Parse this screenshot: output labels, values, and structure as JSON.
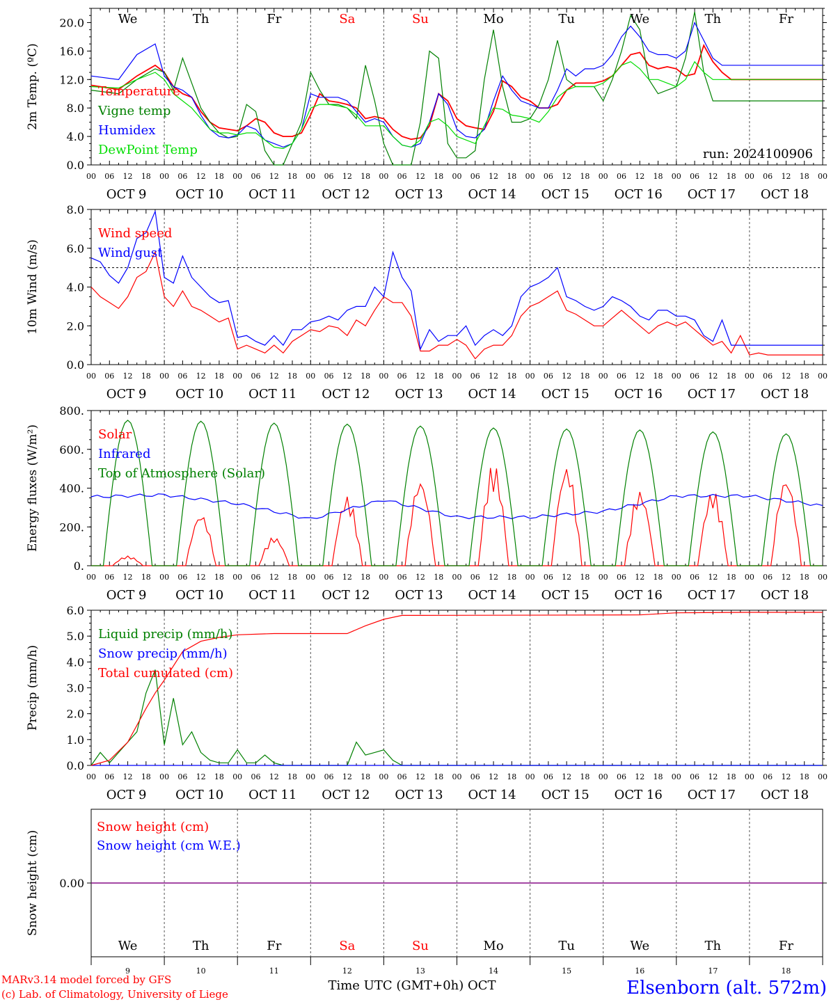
{
  "colors": {
    "red": "#ff0000",
    "green": "#008000",
    "blue": "#0000ff",
    "lime": "#00dd00",
    "purple": "#800080",
    "axis": "#000000",
    "grid": "#555555"
  },
  "days": [
    {
      "name": "We",
      "weekend": false,
      "date": "OCT  9",
      "num": "9"
    },
    {
      "name": "Th",
      "weekend": false,
      "date": "OCT 10",
      "num": "10"
    },
    {
      "name": "Fr",
      "weekend": false,
      "date": "OCT 11",
      "num": "11"
    },
    {
      "name": "Sa",
      "weekend": true,
      "date": "OCT 12",
      "num": "12"
    },
    {
      "name": "Su",
      "weekend": true,
      "date": "OCT 13",
      "num": "13"
    },
    {
      "name": "Mo",
      "weekend": false,
      "date": "OCT 14",
      "num": "14"
    },
    {
      "name": "Tu",
      "weekend": false,
      "date": "OCT 15",
      "num": "15"
    },
    {
      "name": "We",
      "weekend": false,
      "date": "OCT 16",
      "num": "16"
    },
    {
      "name": "Th",
      "weekend": false,
      "date": "OCT 17",
      "num": "17"
    },
    {
      "name": "Fr",
      "weekend": false,
      "date": "OCT 18",
      "num": "18"
    }
  ],
  "hour_ticks": [
    "00",
    "06",
    "12",
    "18"
  ],
  "hour_tick_end": "00",
  "footer": {
    "axis_title": "Time UTC (GMT+0h) OCT",
    "credit_line1": "MARv3.14 model forced by GFS",
    "credit_line2": "(c) Lab. of Climatology, University of Liege",
    "station": "Elsenborn (alt. 572m)"
  },
  "chart_data": [
    {
      "type": "line",
      "ylabel": "2m Temp. (ºC)",
      "ylim": [
        0,
        22
      ],
      "yticks": [
        "0.0",
        "4.0",
        "8.0",
        "12.0",
        "16.0",
        "20.0"
      ],
      "ytick_values": [
        0,
        4,
        8,
        12,
        16,
        20
      ],
      "annotation": "run: 2024100906",
      "x": [
        0,
        9,
        15,
        21,
        24,
        27,
        30,
        33,
        36,
        39,
        42,
        45,
        48,
        51,
        54,
        57,
        60,
        63,
        66,
        69,
        72,
        75,
        78,
        81,
        84,
        87,
        90,
        93,
        96,
        99,
        102,
        105,
        108,
        111,
        114,
        117,
        120,
        123,
        126,
        129,
        132,
        135,
        138,
        141,
        144,
        147,
        150,
        153,
        156,
        159,
        162,
        165,
        168,
        171,
        174,
        177,
        180,
        183,
        186,
        189,
        192,
        195,
        198,
        201,
        204,
        207,
        210,
        213,
        216,
        219,
        222,
        225,
        228,
        231,
        234,
        237,
        240
      ],
      "series": [
        {
          "name": "Temperature",
          "color": "red",
          "values": [
            11.2,
            10.6,
            12.5,
            14.0,
            13.0,
            11.0,
            10.0,
            9.5,
            7.5,
            6.0,
            5.2,
            5.0,
            4.8,
            5.5,
            6.5,
            6.0,
            4.5,
            4.0,
            4.0,
            4.5,
            7.0,
            10.0,
            9.0,
            8.8,
            8.5,
            8.0,
            6.5,
            6.8,
            6.5,
            5.0,
            4.0,
            3.6,
            3.8,
            5.5,
            10.0,
            9.0,
            6.5,
            5.5,
            5.2,
            5.0,
            7.5,
            11.8,
            11.0,
            9.5,
            9.0,
            8.0,
            8.0,
            8.5,
            10.5,
            11.5,
            11.5,
            11.5,
            11.8,
            12.5,
            14.0,
            15.5,
            15.8,
            14.0,
            13.5,
            13.8,
            13.5,
            12.5,
            12.8,
            16.8,
            14.5,
            13.0,
            12.0,
            12.0,
            12.0,
            12.0,
            12.0,
            12.0,
            12.0,
            12.0,
            12.0,
            12.0,
            12.0
          ]
        },
        {
          "name": "Vigne temp",
          "color": "green",
          "values": [
            10.5,
            10.0,
            12.0,
            13.5,
            13.0,
            10.5,
            15.0,
            11.5,
            8.0,
            6.0,
            4.5,
            3.8,
            4.0,
            8.5,
            7.5,
            2.0,
            0.0,
            0.0,
            3.0,
            6.0,
            13.0,
            10.5,
            8.5,
            8.5,
            8.0,
            6.5,
            14.0,
            9.0,
            3.0,
            0.0,
            0.0,
            0.0,
            6.0,
            16.0,
            15.0,
            3.0,
            1.0,
            1.0,
            2.0,
            12.0,
            19.0,
            11.0,
            6.0,
            6.0,
            6.5,
            8.5,
            12.0,
            17.5,
            12.0,
            11.0,
            11.0,
            11.0,
            9.0,
            12.0,
            16.0,
            21.0,
            19.0,
            12.0,
            10.0,
            10.5,
            11.0,
            15.0,
            21.5,
            13.0,
            9.0,
            9.0,
            9.0,
            9.0,
            9.0,
            9.0,
            9.0,
            9.0,
            9.0,
            9.0,
            9.0,
            9.0,
            9.0
          ]
        },
        {
          "name": "Humidex",
          "color": "blue",
          "values": [
            12.5,
            12.0,
            15.5,
            17.0,
            12.5,
            11.0,
            10.5,
            9.5,
            7.0,
            5.0,
            4.0,
            3.8,
            4.2,
            5.5,
            5.0,
            3.5,
            3.0,
            2.5,
            3.0,
            5.0,
            10.0,
            9.5,
            9.5,
            9.5,
            9.0,
            7.5,
            6.0,
            6.5,
            6.0,
            4.0,
            2.8,
            2.5,
            3.0,
            6.0,
            10.0,
            8.5,
            5.0,
            4.0,
            3.8,
            5.0,
            9.0,
            12.5,
            10.5,
            9.0,
            8.5,
            8.0,
            8.0,
            10.5,
            13.5,
            12.5,
            13.5,
            13.5,
            14.0,
            15.5,
            18.0,
            19.5,
            18.0,
            16.0,
            15.5,
            15.5,
            15.0,
            16.0,
            20.0,
            17.5,
            15.0,
            14.0,
            14.0,
            14.0,
            14.0,
            14.0,
            14.0,
            14.0,
            14.0,
            14.0,
            14.0,
            14.0,
            14.0
          ]
        },
        {
          "name": "DewPoint Temp",
          "color": "lime",
          "values": [
            11.0,
            10.8,
            12.0,
            13.0,
            12.0,
            10.0,
            9.0,
            8.0,
            6.5,
            5.0,
            4.5,
            4.5,
            4.2,
            4.5,
            4.5,
            3.5,
            2.5,
            2.3,
            3.0,
            5.0,
            8.0,
            8.5,
            8.5,
            8.3,
            8.0,
            7.0,
            5.5,
            5.5,
            5.5,
            4.0,
            2.8,
            2.5,
            3.5,
            6.0,
            6.5,
            5.5,
            4.0,
            3.5,
            3.0,
            5.5,
            8.0,
            7.8,
            7.0,
            6.8,
            6.5,
            6.0,
            7.5,
            9.5,
            10.5,
            11.0,
            11.0,
            11.0,
            11.5,
            12.5,
            14.0,
            14.5,
            13.5,
            12.0,
            12.0,
            11.5,
            11.0,
            12.0,
            14.5,
            13.0,
            12.0,
            12.0,
            12.0,
            12.0,
            12.0,
            12.0,
            12.0,
            12.0,
            12.0,
            12.0,
            12.0,
            12.0,
            12.0
          ]
        }
      ]
    },
    {
      "type": "line",
      "ylabel": "10m Wind (m/s)",
      "ylim": [
        0,
        8
      ],
      "yticks": [
        "0.0",
        "2.0",
        "4.0",
        "6.0",
        "8.0"
      ],
      "ytick_values": [
        0,
        2,
        4,
        6,
        8
      ],
      "ref_line": 5,
      "x": [
        0,
        3,
        6,
        9,
        12,
        15,
        18,
        21,
        24,
        27,
        30,
        33,
        36,
        39,
        42,
        45,
        48,
        51,
        54,
        57,
        60,
        63,
        66,
        69,
        72,
        75,
        78,
        81,
        84,
        87,
        90,
        93,
        96,
        99,
        102,
        105,
        108,
        111,
        114,
        117,
        120,
        123,
        126,
        129,
        132,
        135,
        138,
        141,
        144,
        147,
        150,
        153,
        156,
        159,
        162,
        165,
        168,
        171,
        174,
        177,
        180,
        183,
        186,
        189,
        192,
        195,
        198,
        201,
        204,
        207,
        210,
        213,
        216,
        219,
        222,
        225,
        228,
        231,
        234,
        237,
        240
      ],
      "series": [
        {
          "name": "Wind speed",
          "color": "red",
          "values": [
            4.0,
            3.5,
            3.2,
            2.9,
            3.5,
            4.5,
            4.8,
            5.8,
            3.5,
            3.0,
            3.8,
            3.0,
            2.8,
            2.5,
            2.2,
            2.4,
            0.8,
            1.0,
            0.8,
            0.6,
            1.0,
            0.6,
            1.2,
            1.5,
            1.8,
            1.7,
            2.0,
            1.9,
            1.5,
            2.3,
            2.0,
            2.8,
            3.5,
            3.2,
            3.2,
            2.5,
            0.7,
            0.7,
            1.0,
            1.0,
            1.3,
            1.0,
            0.3,
            0.8,
            1.0,
            1.0,
            1.5,
            2.5,
            3.0,
            3.2,
            3.5,
            3.8,
            2.8,
            2.6,
            2.3,
            2.0,
            2.0,
            2.4,
            2.8,
            2.4,
            2.0,
            1.6,
            2.0,
            2.2,
            2.0,
            2.2,
            1.8,
            1.4,
            1.0,
            1.2,
            0.6,
            1.5,
            0.5,
            0.6,
            0.5,
            0.5,
            0.5,
            0.5,
            0.5,
            0.5,
            0.5
          ]
        },
        {
          "name": "Wind gust",
          "color": "blue",
          "values": [
            5.5,
            5.3,
            4.6,
            4.2,
            5.0,
            6.5,
            6.8,
            7.9,
            4.5,
            4.2,
            5.6,
            4.5,
            4.0,
            3.5,
            3.2,
            3.3,
            1.4,
            1.5,
            1.2,
            1.0,
            1.5,
            1.0,
            1.8,
            1.8,
            2.2,
            2.3,
            2.5,
            2.3,
            2.8,
            3.0,
            3.0,
            4.0,
            3.5,
            5.8,
            4.5,
            3.8,
            0.8,
            1.8,
            1.2,
            1.5,
            1.5,
            2.0,
            1.0,
            1.5,
            1.8,
            1.5,
            2.0,
            3.5,
            4.0,
            4.2,
            4.5,
            5.0,
            3.5,
            3.3,
            3.0,
            2.8,
            3.0,
            3.5,
            3.3,
            3.0,
            2.5,
            2.3,
            2.8,
            2.8,
            2.5,
            2.5,
            2.3,
            1.5,
            1.2,
            2.3,
            1.0,
            1.0,
            1.0,
            1.0,
            1.0,
            1.0,
            1.0,
            1.0,
            1.0,
            1.0,
            1.0
          ]
        }
      ]
    },
    {
      "type": "line",
      "ylabel": "Energy fluxes (W/m²)",
      "ylim": [
        0,
        800
      ],
      "yticks": [
        "0.",
        "200.",
        "400.",
        "600.",
        "800."
      ],
      "ytick_values": [
        0,
        200,
        400,
        600,
        800
      ],
      "series": [
        {
          "name": "Solar",
          "color": "red",
          "daily_peaks": [
            50,
            270,
            150,
            360,
            450,
            530,
            520,
            390,
            390,
            460
          ]
        },
        {
          "name": "Infrared",
          "color": "blue",
          "x": [
            0,
            24,
            48,
            72,
            96,
            120,
            144,
            168,
            192,
            216,
            240
          ],
          "values": [
            355,
            365,
            320,
            240,
            340,
            250,
            250,
            280,
            360,
            360,
            310
          ]
        },
        {
          "name": "Top of Atmosphere (Solar)",
          "color": "green",
          "daily_peaks": [
            750,
            745,
            735,
            730,
            720,
            710,
            705,
            700,
            690,
            680
          ]
        }
      ]
    },
    {
      "type": "line",
      "ylabel": "Precip (mm/h)",
      "ylim": [
        0,
        6
      ],
      "yticks": [
        "0.0",
        "1.0",
        "2.0",
        "3.0",
        "4.0",
        "5.0",
        "6.0"
      ],
      "ytick_values": [
        0,
        1,
        2,
        3,
        4,
        5,
        6
      ],
      "series": [
        {
          "name": "Liquid precip (mm/h)",
          "color": "green",
          "x": [
            0,
            3,
            6,
            9,
            12,
            15,
            18,
            21,
            24,
            27,
            30,
            33,
            36,
            39,
            42,
            45,
            48,
            51,
            54,
            57,
            60,
            63,
            66,
            69,
            72,
            75,
            78,
            81,
            84,
            87,
            90,
            93,
            96,
            99,
            102,
            105,
            240
          ],
          "values": [
            0.0,
            0.5,
            0.1,
            0.5,
            0.9,
            1.3,
            2.8,
            3.7,
            0.8,
            2.6,
            0.8,
            1.3,
            0.5,
            0.2,
            0.1,
            0.1,
            0.6,
            0.1,
            0.1,
            0.4,
            0.1,
            0.0,
            0.0,
            0.0,
            0.0,
            0.0,
            0.0,
            0.0,
            0.0,
            0.9,
            0.4,
            0.5,
            0.6,
            0.2,
            0.0,
            0.0,
            0.0
          ]
        },
        {
          "name": "Snow precip (mm/h)",
          "color": "blue",
          "x": [
            0,
            240
          ],
          "values": [
            0.0,
            0.0
          ]
        },
        {
          "name": "Total cumulated (cm)",
          "color": "red",
          "x": [
            0,
            6,
            12,
            18,
            21,
            24,
            30,
            36,
            42,
            48,
            60,
            72,
            84,
            90,
            96,
            102,
            108,
            180,
            192,
            216,
            240
          ],
          "values": [
            0.0,
            0.2,
            0.9,
            2.2,
            2.8,
            3.3,
            4.4,
            4.8,
            4.95,
            5.05,
            5.1,
            5.1,
            5.1,
            5.4,
            5.65,
            5.8,
            5.8,
            5.82,
            5.9,
            5.92,
            5.92
          ]
        }
      ]
    },
    {
      "type": "line",
      "ylabel": "Snow height (cm)",
      "ylim": [
        -1,
        1
      ],
      "yticks": [
        "0.00"
      ],
      "ytick_values": [
        0
      ],
      "series": [
        {
          "name": "Snow height (cm)",
          "color": "red",
          "x": [
            0,
            240
          ],
          "values": [
            0,
            0
          ]
        },
        {
          "name": "Snow height (cm W.E.)",
          "color": "blue",
          "x": [
            0,
            240
          ],
          "values": [
            0,
            0
          ]
        }
      ]
    }
  ]
}
